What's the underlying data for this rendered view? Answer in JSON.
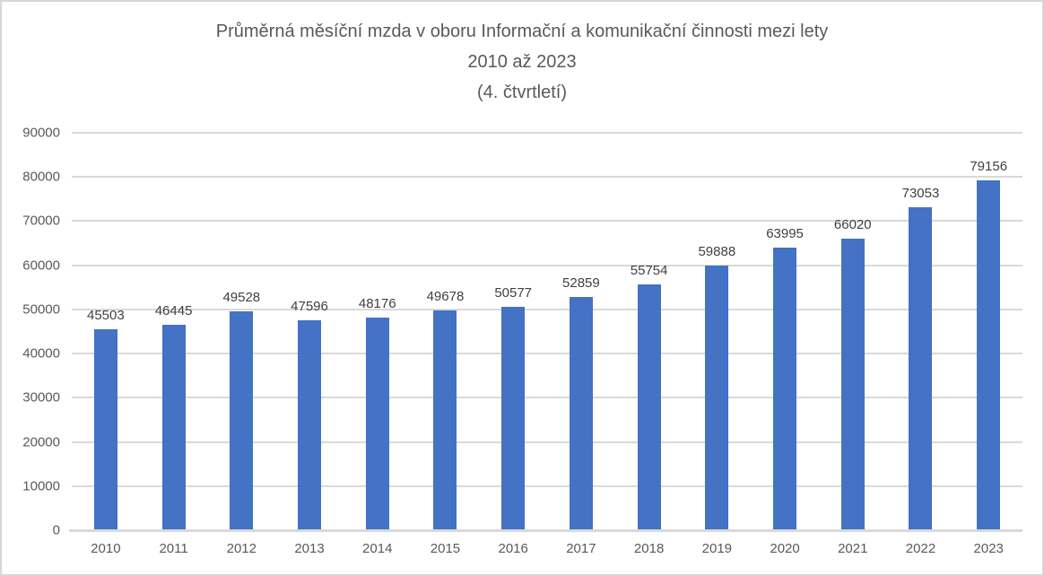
{
  "page": {
    "background": "#ffffff",
    "border_color": "#d7d7d7"
  },
  "chart_data": {
    "type": "bar",
    "title": "Průměrná měsíční mzda v oboru Informační a komunikační činnosti mezi lety 2010 až 2023 (4. čtvrtletí)",
    "title_lines": [
      "Průměrná měsíční mzda v oboru Informační a komunikační činnosti mezi lety",
      "2010 až 2023",
      "(4. čtvrtletí)"
    ],
    "categories": [
      "2010",
      "2011",
      "2012",
      "2013",
      "2014",
      "2015",
      "2016",
      "2017",
      "2018",
      "2019",
      "2020",
      "2021",
      "2022",
      "2023"
    ],
    "values": [
      45503,
      46445,
      49528,
      47596,
      48176,
      49678,
      50577,
      52859,
      55754,
      59888,
      63995,
      66020,
      73053,
      79156
    ],
    "xlabel": "",
    "ylabel": "",
    "ylim": [
      0,
      90000
    ],
    "ytick_step": 10000,
    "yticks": [
      0,
      10000,
      20000,
      30000,
      40000,
      50000,
      60000,
      70000,
      80000,
      90000
    ],
    "grid": true,
    "legend": "none",
    "data_labels": true,
    "colors": {
      "bar": "#4472c4",
      "gridline": "#d9d9d9",
      "axis_line": "#d9d9d9",
      "title": "#595959",
      "tick_label": "#595959",
      "data_label": "#404040"
    }
  }
}
